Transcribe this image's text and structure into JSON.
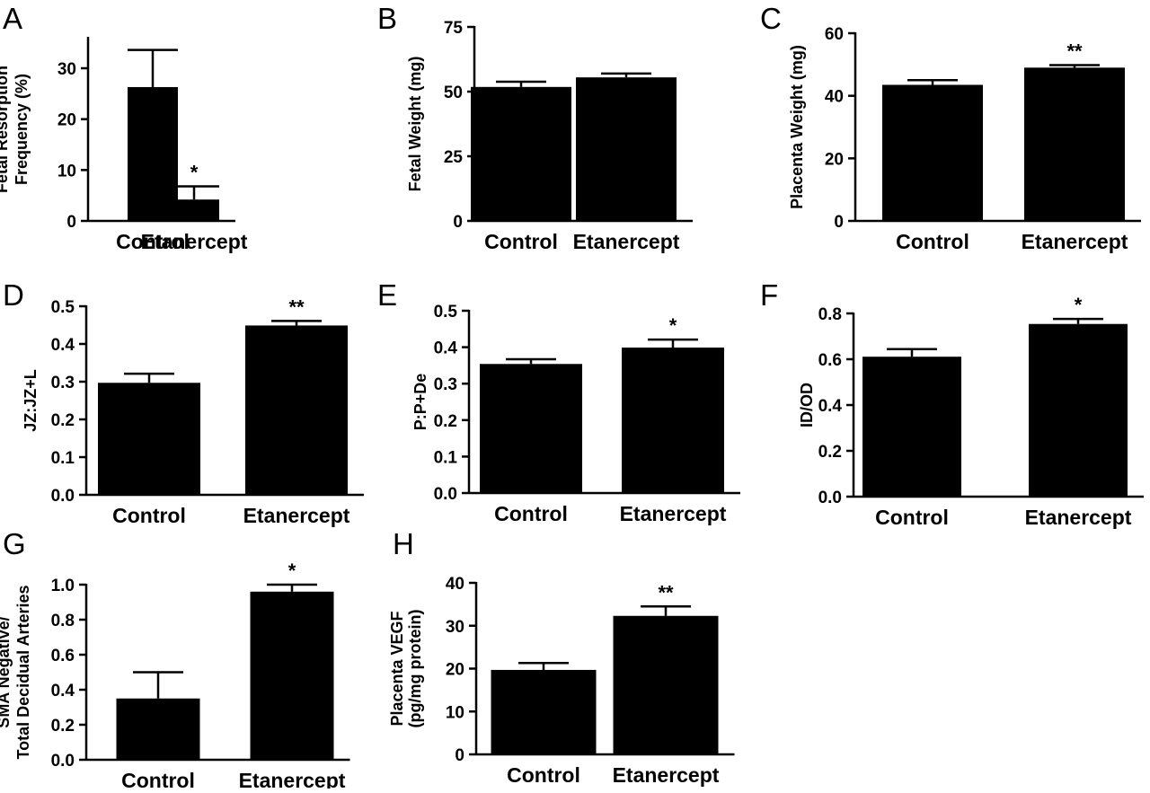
{
  "figure": {
    "panels": [
      {
        "letter": "A",
        "ylabel_lines": [
          "Fetal Resorption",
          "Frequency (%)"
        ]
      },
      {
        "letter": "B",
        "ylabel_lines": [
          "Fetal Weight (mg)"
        ]
      },
      {
        "letter": "C",
        "ylabel_lines": [
          "Placenta Weight (mg)"
        ]
      },
      {
        "letter": "D",
        "ylabel_lines": [
          "JZ:JZ+L"
        ]
      },
      {
        "letter": "E",
        "ylabel_lines": [
          "P:P+De"
        ]
      },
      {
        "letter": "F",
        "ylabel_lines": [
          "ID/OD"
        ]
      },
      {
        "letter": "G",
        "ylabel_lines": [
          "SMA Negative/",
          "Total Decidual Arteries"
        ]
      },
      {
        "letter": "H",
        "ylabel_lines": [
          "Placenta VEGF",
          "(pg/mg protein)"
        ]
      }
    ]
  },
  "chart_data": [
    {
      "panel": "A",
      "type": "bar",
      "categories": [
        "Control",
        "Etanercept"
      ],
      "values": [
        26.3,
        4.2
      ],
      "errors": [
        7.3,
        2.6
      ],
      "significance": [
        "",
        "*"
      ],
      "ylabel": "Fetal Resorption Frequency (%)",
      "ylim": [
        0,
        36
      ],
      "yticks": [
        0,
        10,
        20,
        30
      ],
      "ytick_labels": [
        "0",
        "10",
        "20",
        "30"
      ],
      "bar_color": "#000000",
      "grid": false
    },
    {
      "panel": "B",
      "type": "bar",
      "categories": [
        "Control",
        "Etanercept"
      ],
      "values": [
        51.8,
        55.5
      ],
      "errors": [
        2.0,
        1.5
      ],
      "significance": [
        "",
        ""
      ],
      "ylabel": "Fetal Weight (mg)",
      "ylim": [
        0,
        75
      ],
      "yticks": [
        0,
        25,
        50,
        75
      ],
      "ytick_labels": [
        "0",
        "25",
        "50",
        "75"
      ],
      "bar_color": "#000000",
      "grid": false
    },
    {
      "panel": "C",
      "type": "bar",
      "categories": [
        "Control",
        "Etanercept"
      ],
      "values": [
        43.5,
        49.0
      ],
      "errors": [
        1.5,
        0.8
      ],
      "significance": [
        "",
        "**"
      ],
      "ylabel": "Placenta Weight (mg)",
      "ylim": [
        0,
        60
      ],
      "yticks": [
        0,
        20,
        40,
        60
      ],
      "ytick_labels": [
        "0",
        "20",
        "40",
        "60"
      ],
      "bar_color": "#000000",
      "grid": false
    },
    {
      "panel": "D",
      "type": "bar",
      "categories": [
        "Control",
        "Etanercept"
      ],
      "values": [
        0.297,
        0.449
      ],
      "errors": [
        0.024,
        0.012
      ],
      "significance": [
        "",
        "**"
      ],
      "ylabel": "JZ:JZ+L",
      "ylim": [
        0,
        0.5
      ],
      "yticks": [
        0,
        0.1,
        0.2,
        0.3,
        0.4,
        0.5
      ],
      "ytick_labels": [
        "0.0",
        "0.1",
        "0.2",
        "0.3",
        "0.4",
        "0.5"
      ],
      "bar_color": "#000000",
      "grid": false
    },
    {
      "panel": "E",
      "type": "bar",
      "categories": [
        "Control",
        "Etanercept"
      ],
      "values": [
        0.354,
        0.399
      ],
      "errors": [
        0.013,
        0.022
      ],
      "significance": [
        "",
        "*"
      ],
      "ylabel": "P:P+De",
      "ylim": [
        0,
        0.5
      ],
      "yticks": [
        0,
        0.1,
        0.2,
        0.3,
        0.4,
        0.5
      ],
      "ytick_labels": [
        "0.0",
        "0.1",
        "0.2",
        "0.3",
        "0.4",
        "0.5"
      ],
      "bar_color": "#000000",
      "grid": false
    },
    {
      "panel": "F",
      "type": "bar",
      "categories": [
        "Control",
        "Etanercept"
      ],
      "values": [
        0.611,
        0.754
      ],
      "errors": [
        0.033,
        0.022
      ],
      "significance": [
        "",
        "*"
      ],
      "ylabel": "ID/OD",
      "ylim": [
        0,
        0.8
      ],
      "yticks": [
        0,
        0.2,
        0.4,
        0.6,
        0.8
      ],
      "ytick_labels": [
        "0.0",
        "0.2",
        "0.4",
        "0.6",
        "0.8"
      ],
      "bar_color": "#000000",
      "grid": false
    },
    {
      "panel": "G",
      "type": "bar",
      "categories": [
        "Control",
        "Etanercept"
      ],
      "values": [
        0.35,
        0.96
      ],
      "errors": [
        0.15,
        0.04
      ],
      "significance": [
        "",
        "*"
      ],
      "ylabel": "SMA Negative/ Total Decidual Arteries",
      "ylim": [
        0,
        1.0
      ],
      "yticks": [
        0,
        0.2,
        0.4,
        0.6,
        0.8,
        1.0
      ],
      "ytick_labels": [
        "0.0",
        "0.2",
        "0.4",
        "0.6",
        "0.8",
        "1.0"
      ],
      "bar_color": "#000000",
      "grid": false
    },
    {
      "panel": "H",
      "type": "bar",
      "categories": [
        "Control",
        "Etanercept"
      ],
      "values": [
        19.7,
        32.3
      ],
      "errors": [
        1.6,
        2.2
      ],
      "significance": [
        "",
        "**"
      ],
      "ylabel": "Placenta VEGF (pg/mg protein)",
      "ylim": [
        0,
        40
      ],
      "yticks": [
        0,
        10,
        20,
        30,
        40
      ],
      "ytick_labels": [
        "0",
        "10",
        "20",
        "30",
        "40"
      ],
      "bar_color": "#000000",
      "grid": false
    }
  ]
}
